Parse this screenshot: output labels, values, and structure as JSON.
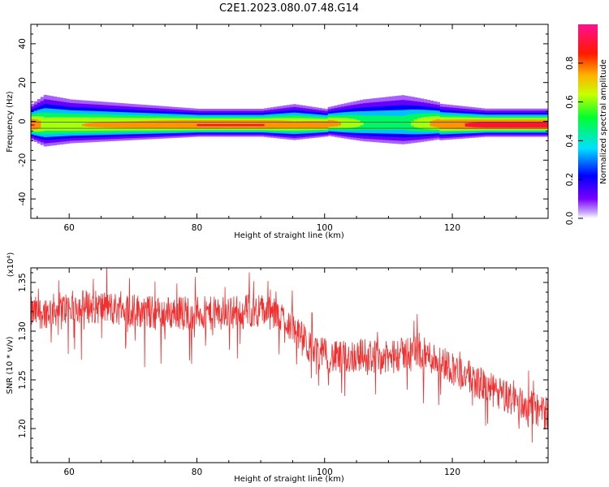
{
  "title": "C2E1.2023.080.07.48.G14",
  "chart_data": [
    {
      "type": "heatmap",
      "xlabel": "Height of straight line (km)",
      "ylabel": "Frequency (Hz)",
      "xlim": [
        54,
        135
      ],
      "ylim": [
        -50,
        50
      ],
      "x_ticks": [
        60,
        80,
        100,
        120
      ],
      "y_ticks": [
        40,
        20,
        0,
        -20,
        -40
      ],
      "colorbar": {
        "label": "Normalized spectral amplitude",
        "range": [
          0,
          1
        ],
        "ticks": [
          "0.0",
          "0.2",
          "0.4",
          "0.6",
          "0.8"
        ],
        "colormap": "rainbow (magenta-blue-cyan-green-yellow-red-pink)"
      },
      "ridge": {
        "frequency_hz": -2,
        "x": [
          54,
          56,
          60,
          70,
          80,
          90,
          95,
          100,
          106,
          112,
          118,
          125,
          135
        ],
        "band_width_hz": [
          4,
          6,
          5,
          4,
          3,
          3,
          4,
          3,
          5,
          6,
          4,
          3,
          3
        ],
        "peak_amplitude": [
          0.9,
          0.7,
          0.75,
          0.8,
          0.9,
          0.9,
          0.8,
          0.85,
          0.6,
          0.55,
          0.85,
          0.95,
          0.95
        ]
      }
    },
    {
      "type": "line",
      "xlabel": "Height of straight line (km)",
      "ylabel": "SNR (10 * v/v)",
      "yscale_label": "(x10⁴)",
      "xlim": [
        54,
        135
      ],
      "ylim": [
        1.165,
        1.365
      ],
      "x_ticks": [
        60,
        80,
        100,
        120
      ],
      "y_ticks": [
        "1.35",
        "1.30",
        "1.25",
        "1.20"
      ],
      "series": [
        {
          "color": "#f03030",
          "x": [
            54,
            58,
            62,
            66,
            70,
            74,
            78,
            82,
            86,
            90,
            94,
            98,
            102,
            106,
            110,
            114,
            118,
            122,
            126,
            130,
            135
          ],
          "values": [
            1.318,
            1.322,
            1.326,
            1.324,
            1.322,
            1.318,
            1.32,
            1.318,
            1.32,
            1.322,
            1.312,
            1.28,
            1.272,
            1.276,
            1.272,
            1.28,
            1.27,
            1.255,
            1.24,
            1.228,
            1.215
          ],
          "noise_amplitude": 0.025
        }
      ]
    }
  ]
}
